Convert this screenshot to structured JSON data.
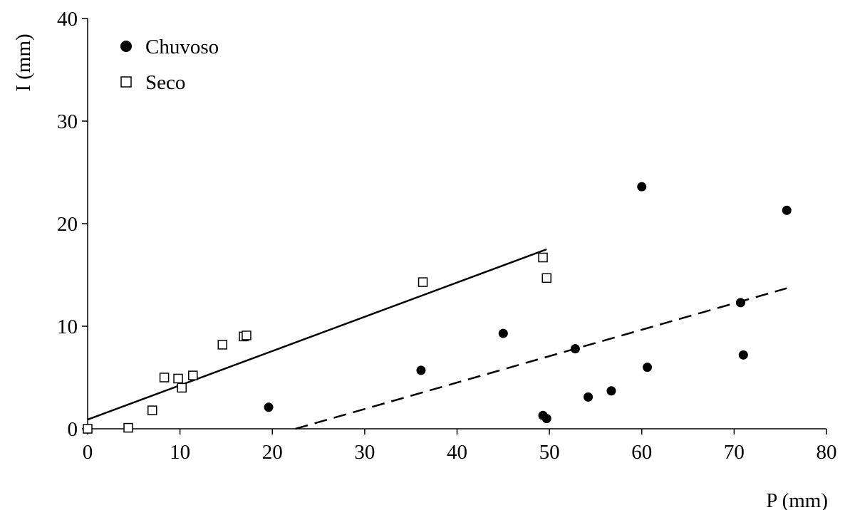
{
  "chart_data": {
    "type": "scatter",
    "xlabel": "P (mm)",
    "ylabel": "I (mm)",
    "xlim": [
      0,
      80
    ],
    "ylim": [
      0,
      40
    ],
    "xticks": [
      "0",
      "10",
      "20",
      "30",
      "40",
      "50",
      "60",
      "70",
      "80"
    ],
    "yticks": [
      "0",
      "10",
      "20",
      "30",
      "40"
    ],
    "grid": false,
    "legend_position": "top-left",
    "series": [
      {
        "name": "Chuvoso",
        "marker": "filled-circle",
        "color": "#000000",
        "points": [
          [
            19.6,
            2.1
          ],
          [
            36.1,
            5.7
          ],
          [
            45.0,
            9.3
          ],
          [
            49.3,
            1.3
          ],
          [
            49.7,
            1.0
          ],
          [
            52.8,
            7.8
          ],
          [
            54.2,
            3.1
          ],
          [
            56.7,
            3.7
          ],
          [
            60.0,
            23.6
          ],
          [
            60.6,
            6.0
          ],
          [
            70.7,
            12.3
          ],
          [
            71.0,
            7.2
          ],
          [
            75.7,
            21.3
          ]
        ],
        "trendline": {
          "style": "dashed",
          "x": [
            22.5,
            75.7
          ],
          "y": [
            0.0,
            13.7
          ]
        }
      },
      {
        "name": "Seco",
        "marker": "open-square",
        "color": "#000000",
        "points": [
          [
            0.0,
            0.0
          ],
          [
            4.4,
            0.1
          ],
          [
            7.0,
            1.8
          ],
          [
            8.3,
            5.0
          ],
          [
            9.8,
            4.9
          ],
          [
            10.2,
            4.0
          ],
          [
            11.4,
            5.2
          ],
          [
            14.6,
            8.2
          ],
          [
            16.9,
            9.0
          ],
          [
            17.2,
            9.1
          ],
          [
            36.3,
            14.3
          ],
          [
            49.3,
            16.7
          ],
          [
            49.7,
            14.7
          ]
        ],
        "trendline": {
          "style": "solid",
          "x": [
            0.0,
            49.7
          ],
          "y": [
            0.9,
            17.5
          ]
        }
      }
    ]
  }
}
